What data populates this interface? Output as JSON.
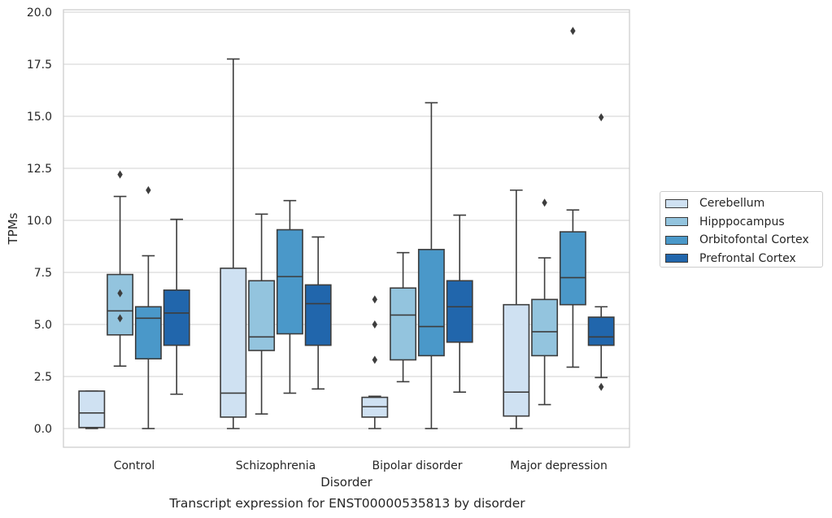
{
  "chart_data": {
    "type": "box",
    "title": "Transcript expression for ENST00000535813 by disorder",
    "xlabel": "Disorder",
    "ylabel": "TPMs",
    "ylim": [
      -0.9,
      20.2
    ],
    "yticks": [
      "0.0",
      "2.5",
      "5.0",
      "7.5",
      "10.0",
      "12.5",
      "15.0",
      "17.5",
      "20.0"
    ],
    "grid": "horizontal",
    "legend_position": "right",
    "categories": [
      "Control",
      "Schizophrenia",
      "Bipolar disorder",
      "Major depression"
    ],
    "series": [
      {
        "name": "Cerebellum",
        "color": "#cfe1f2",
        "boxes": [
          {
            "whislo": 0.0,
            "q1": 0.05,
            "med": 0.75,
            "q3": 1.8,
            "whishi": 1.8,
            "fliers": []
          },
          {
            "whislo": 0.0,
            "q1": 0.55,
            "med": 1.7,
            "q3": 7.7,
            "whishi": 17.75,
            "fliers": []
          },
          {
            "whislo": 0.0,
            "q1": 0.55,
            "med": 1.05,
            "q3": 1.5,
            "whishi": 1.55,
            "fliers": [
              3.3,
              5.0,
              6.2
            ]
          },
          {
            "whislo": 0.0,
            "q1": 0.6,
            "med": 1.75,
            "q3": 5.95,
            "whishi": 11.45,
            "fliers": []
          }
        ]
      },
      {
        "name": "Hipppocampus",
        "color": "#93c4de",
        "boxes": [
          {
            "whislo": 3.0,
            "q1": 4.5,
            "med": 5.65,
            "q3": 7.4,
            "whishi": 11.15,
            "fliers": [
              5.3,
              6.5,
              12.2
            ]
          },
          {
            "whislo": 0.7,
            "q1": 3.75,
            "med": 4.4,
            "q3": 7.1,
            "whishi": 10.3,
            "fliers": []
          },
          {
            "whislo": 2.25,
            "q1": 3.3,
            "med": 5.45,
            "q3": 6.75,
            "whishi": 8.45,
            "fliers": []
          },
          {
            "whislo": 1.15,
            "q1": 3.5,
            "med": 4.65,
            "q3": 6.2,
            "whishi": 8.2,
            "fliers": [
              10.85
            ]
          }
        ]
      },
      {
        "name": "Orbitofontal Cortex",
        "color": "#4a98c9",
        "boxes": [
          {
            "whislo": 0.0,
            "q1": 3.35,
            "med": 5.3,
            "q3": 5.85,
            "whishi": 8.3,
            "fliers": [
              11.45
            ]
          },
          {
            "whislo": 1.7,
            "q1": 4.55,
            "med": 7.3,
            "q3": 9.55,
            "whishi": 10.95,
            "fliers": []
          },
          {
            "whislo": 0.0,
            "q1": 3.5,
            "med": 4.9,
            "q3": 8.6,
            "whishi": 15.65,
            "fliers": []
          },
          {
            "whislo": 2.95,
            "q1": 5.95,
            "med": 7.25,
            "q3": 9.45,
            "whishi": 10.5,
            "fliers": [
              19.1
            ]
          }
        ]
      },
      {
        "name": "Prefrontal Cortex",
        "color": "#2166ac",
        "boxes": [
          {
            "whislo": 1.65,
            "q1": 4.0,
            "med": 5.55,
            "q3": 6.65,
            "whishi": 10.05,
            "fliers": []
          },
          {
            "whislo": 1.9,
            "q1": 4.0,
            "med": 6.0,
            "q3": 6.9,
            "whishi": 9.2,
            "fliers": []
          },
          {
            "whislo": 1.75,
            "q1": 4.15,
            "med": 5.85,
            "q3": 7.1,
            "whishi": 10.25,
            "fliers": []
          },
          {
            "whislo": 2.45,
            "q1": 4.0,
            "med": 4.4,
            "q3": 5.35,
            "whishi": 5.85,
            "fliers": [
              2.0,
              14.95
            ]
          }
        ]
      }
    ]
  }
}
